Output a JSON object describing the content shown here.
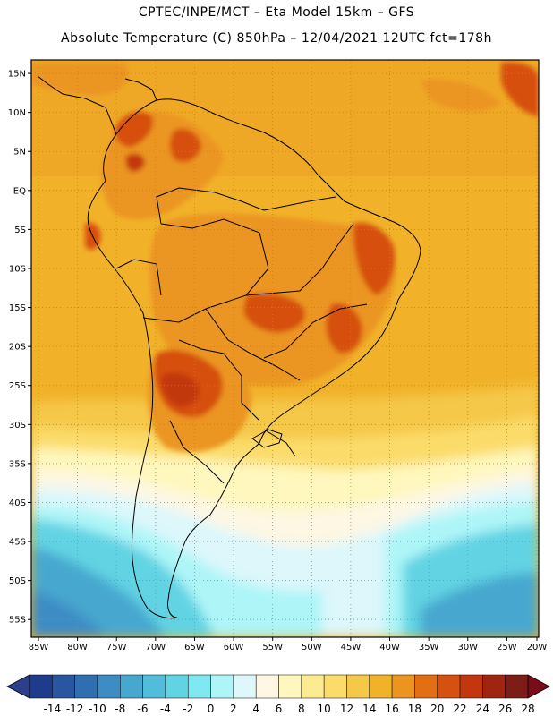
{
  "header": {
    "line1": "CPTEC/INPE/MCT –   Eta Model 15km – GFS",
    "line2": "Absolute Temperature (C) 850hPa – 12/04/2021 12UTC fct=178h"
  },
  "map": {
    "lon_ticks": [
      "85W",
      "80W",
      "75W",
      "70W",
      "65W",
      "60W",
      "55W",
      "50W",
      "45W",
      "40W",
      "35W",
      "30W",
      "25W",
      "20W"
    ],
    "lat_ticks": [
      "15N",
      "10N",
      "5N",
      "EQ",
      "5S",
      "10S",
      "15S",
      "20S",
      "25S",
      "30S",
      "35S",
      "40S",
      "45S",
      "50S",
      "55S"
    ],
    "lon_range": [
      -85,
      -20
    ],
    "lat_range": [
      -57.5,
      16.5
    ],
    "grid": true,
    "region": "South America"
  },
  "colorbar": {
    "labels": [
      "-14",
      "-12",
      "-10",
      "-8",
      "-6",
      "-4",
      "-2",
      "0",
      "2",
      "4",
      "6",
      "8",
      "10",
      "12",
      "14",
      "16",
      "18",
      "20",
      "22",
      "24",
      "26",
      "28"
    ],
    "under_color": "#2b3f8a",
    "over_color": "#7a0c1a",
    "colors": [
      "#1f3b8c",
      "#2a55a0",
      "#2f6eb0",
      "#3d8cc4",
      "#47a7cf",
      "#52bddb",
      "#62d3e3",
      "#7fe8f0",
      "#aef5f8",
      "#ddf7fb",
      "#fdf7e4",
      "#fff7bd",
      "#fdeb8f",
      "#fbdc6a",
      "#f5c84a",
      "#f1b22a",
      "#eb9520",
      "#e26f14",
      "#d6500f",
      "#c2370d",
      "#a02510",
      "#7e1c17"
    ]
  },
  "chart_data": {
    "type": "heatmap",
    "title": "Absolute Temperature (C) 850hPa – 12/04/2021 12UTC fct=178h",
    "variable": "Absolute Temperature",
    "units": "C",
    "level": "850hPa",
    "run": "12/04/2021 12UTC",
    "forecast": "fct=178h",
    "x_axis_ticks": [
      "85W",
      "80W",
      "75W",
      "70W",
      "65W",
      "60W",
      "55W",
      "50W",
      "45W",
      "40W",
      "35W",
      "30W",
      "25W",
      "20W"
    ],
    "y_axis_ticks": [
      "15N",
      "10N",
      "5N",
      "EQ",
      "5S",
      "10S",
      "15S",
      "20S",
      "25S",
      "30S",
      "35S",
      "40S",
      "45S",
      "50S",
      "55S"
    ],
    "colorbar_range": [
      -14,
      28
    ],
    "colorbar_step": 2
  }
}
